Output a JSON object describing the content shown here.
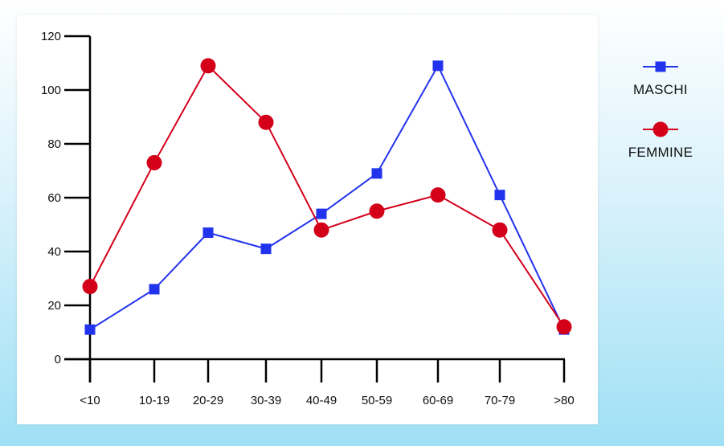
{
  "chart_data": {
    "type": "line",
    "categories": [
      "<10",
      "10-19",
      "20-29",
      "30-39",
      "40-49",
      "50-59",
      "60-69",
      "70-79",
      ">80"
    ],
    "y_ticks": [
      "0",
      "20",
      "40",
      "60",
      "80",
      "100",
      "120"
    ],
    "ylim": [
      0,
      120
    ],
    "grid": false,
    "legend_position": "right",
    "series": [
      {
        "name": "MASCHI",
        "color": "#2233ee",
        "marker": "square",
        "values": [
          11,
          26,
          47,
          41,
          54,
          69,
          109,
          61,
          11
        ]
      },
      {
        "name": "FEMMINE",
        "color": "#d4001a",
        "marker": "circle",
        "values": [
          27,
          73,
          109,
          88,
          48,
          55,
          61,
          48,
          12
        ]
      }
    ]
  }
}
